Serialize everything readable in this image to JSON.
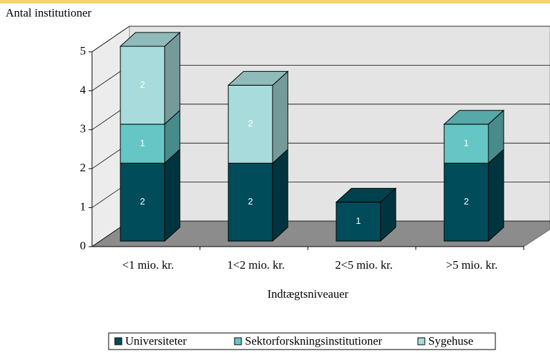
{
  "chart_data": {
    "type": "bar3d_stacked",
    "y_label": "Antal institutioner",
    "x_label": "Indtægtsniveauer",
    "categories": [
      "<1 mio. kr.",
      "1<2 mio. kr.",
      "2<5 mio. kr.",
      ">5 mio. kr."
    ],
    "series": [
      {
        "name": "Universiteter",
        "color": "#004c5a",
        "values": [
          2,
          2,
          1,
          2
        ]
      },
      {
        "name": "Sektorforskningsinstitutioner",
        "color": "#66c6c6",
        "values": [
          1,
          0,
          0,
          1
        ]
      },
      {
        "name": "Sygehuse",
        "color": "#a8dcdc",
        "values": [
          2,
          2,
          0,
          0
        ]
      }
    ],
    "ylim": [
      0,
      5
    ],
    "yticks": [
      0,
      1,
      2,
      3,
      4,
      5
    ],
    "grid": true,
    "legend": "bottom"
  }
}
